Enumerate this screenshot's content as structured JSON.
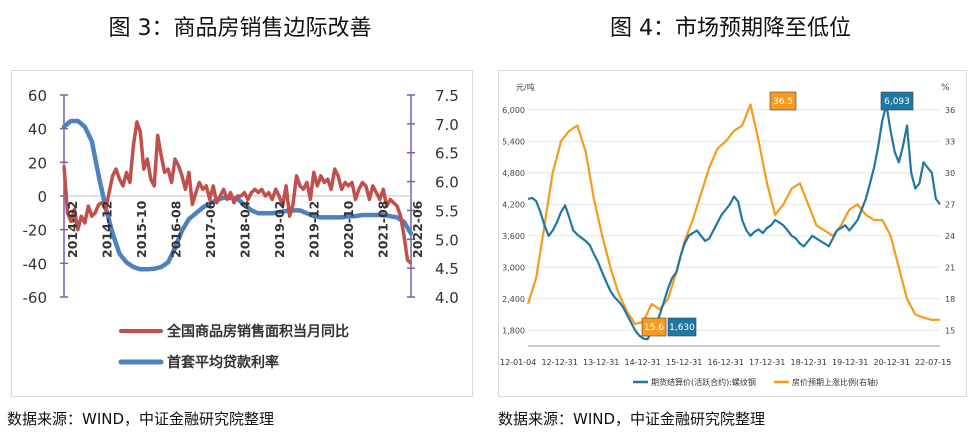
{
  "titles": {
    "left": "图 3：商品房销售边际改善",
    "right": "图 4：市场预期降至低位"
  },
  "sources": {
    "left": "数据来源：WIND，中证金融研究院整理",
    "right": "数据来源：WIND，中证金融研究院整理"
  },
  "colors": {
    "red": "#c0504d",
    "blue": "#4f81bd",
    "purple": "#7b5ea7",
    "teal": "#1f77a4",
    "orange": "#f59b1e"
  },
  "chart_data": [
    {
      "type": "line",
      "title": "图 3：商品房销售边际改善",
      "x_ticks": [
        "2014-02",
        "2014-12",
        "2015-10",
        "2016-08",
        "2017-06",
        "2018-04",
        "2019-02",
        "2019-12",
        "2020-10",
        "2021-08",
        "2022-06"
      ],
      "y_left": {
        "ticks": [
          "60",
          "40",
          "20",
          "0",
          "-20",
          "-40",
          "-60"
        ],
        "lim": [
          -60,
          60
        ]
      },
      "y_right": {
        "ticks": [
          "7.5",
          "7.0",
          "6.5",
          "6.0",
          "5.5",
          "5.0",
          "4.5",
          "4.0"
        ],
        "lim": [
          4.0,
          7.5
        ]
      },
      "legend": {
        "placement": "bottom"
      },
      "series": [
        {
          "name": "全国商品房销售面积当月同比",
          "axis": "left",
          "color": "#c0504d",
          "x": [
            0,
            1,
            2,
            3,
            4,
            5,
            6,
            7,
            8,
            9,
            10,
            11,
            12,
            13,
            14,
            15,
            16,
            17,
            18,
            19,
            20,
            21,
            22,
            23,
            24,
            25,
            26,
            27,
            28,
            29,
            30,
            31,
            32,
            33,
            34,
            35,
            36,
            37,
            38,
            39,
            40,
            41,
            42,
            43,
            44,
            45,
            46,
            47,
            48,
            49,
            50,
            51,
            52,
            53,
            54,
            55,
            56,
            57,
            58,
            59,
            60,
            61,
            62,
            63,
            64,
            65,
            66,
            67,
            68,
            69,
            70,
            71,
            72,
            73,
            74,
            75,
            76,
            77,
            78,
            79,
            80,
            81,
            82,
            83,
            84,
            85,
            86,
            87,
            88,
            89,
            90,
            91,
            92,
            93,
            94,
            95,
            96,
            97,
            98,
            99,
            100
          ],
          "values": [
            18,
            -10,
            -15,
            -8,
            -20,
            -12,
            -16,
            -6,
            -12,
            -10,
            -5,
            -4,
            -8,
            2,
            12,
            16,
            10,
            6,
            14,
            8,
            30,
            44,
            38,
            16,
            22,
            10,
            6,
            36,
            24,
            14,
            16,
            8,
            22,
            18,
            12,
            4,
            14,
            -5,
            2,
            8,
            4,
            6,
            -2,
            6,
            -4,
            0,
            4,
            -2,
            2,
            -4,
            0,
            0,
            2,
            -2,
            2,
            4,
            2,
            4,
            0,
            2,
            -2,
            4,
            0,
            -6,
            6,
            -12,
            -5,
            12,
            6,
            4,
            8,
            -2,
            14,
            6,
            12,
            8,
            10,
            4,
            16,
            12,
            4,
            8,
            6,
            8,
            -2,
            4,
            8,
            6,
            -2,
            6,
            2,
            -2,
            4,
            -6,
            -2,
            -4,
            -6,
            -12,
            -24,
            -38,
            -40
          ]
        },
        {
          "name": "首套平均贷款利率",
          "axis": "right",
          "color": "#4f81bd",
          "x": [
            0,
            2,
            4,
            6,
            8,
            10,
            12,
            14,
            16,
            18,
            20,
            22,
            24,
            26,
            28,
            30,
            32,
            34,
            36,
            38,
            40,
            42,
            44,
            46,
            48,
            50,
            52,
            54,
            56,
            58,
            60,
            62,
            64,
            66,
            68,
            70,
            72,
            74,
            76,
            78,
            80,
            82,
            84,
            86,
            88,
            90,
            92,
            94,
            96,
            98,
            100
          ],
          "values": [
            6.95,
            7.05,
            7.05,
            6.95,
            6.7,
            6.1,
            5.55,
            5.1,
            4.75,
            4.6,
            4.52,
            4.48,
            4.48,
            4.49,
            4.52,
            4.6,
            4.85,
            5.15,
            5.35,
            5.45,
            5.55,
            5.62,
            5.68,
            5.72,
            5.72,
            5.7,
            5.6,
            5.5,
            5.45,
            5.45,
            5.45,
            5.47,
            5.49,
            5.5,
            5.5,
            5.45,
            5.4,
            5.38,
            5.38,
            5.38,
            5.38,
            5.4,
            5.4,
            5.42,
            5.42,
            5.42,
            5.42,
            5.4,
            5.38,
            5.3,
            5.1
          ]
        }
      ]
    },
    {
      "type": "line",
      "title": "图 4：市场预期降至低位",
      "y_left": {
        "unit": "元/吨",
        "ticks": [
          "6,000",
          "5,400",
          "4,800",
          "4,200",
          "3,600",
          "3,000",
          "2,400",
          "1,800"
        ],
        "lim": [
          1500,
          6300
        ]
      },
      "y_right": {
        "unit": "%",
        "ticks": [
          "36",
          "33",
          "30",
          "27",
          "24",
          "21",
          "18",
          "15"
        ],
        "lim": [
          13.5,
          37.5
        ]
      },
      "x_ticks": [
        "12-01-04",
        "12-12-31",
        "13-12-31",
        "14-12-31",
        "15-12-31",
        "16-12-31",
        "17-12-31",
        "18-12-31",
        "19-12-31",
        "20-12-31",
        "22-07-15"
      ],
      "annotations": [
        "36.5",
        "6,093",
        "15.6",
        "1,630"
      ],
      "legend": {
        "placement": "bottom"
      },
      "series": [
        {
          "name": "期货结算价(活跃合约):螺纹钢",
          "axis": "left",
          "color": "#1f77a4",
          "x": [
            0,
            1,
            2,
            3,
            4,
            5,
            6,
            7,
            8,
            9,
            10,
            11,
            12,
            13,
            14,
            15,
            16,
            17,
            18,
            19,
            20,
            21,
            22,
            23,
            24,
            25,
            26,
            27,
            28,
            29,
            30,
            31,
            32,
            33,
            34,
            35,
            36,
            37,
            38,
            39,
            40,
            41,
            42,
            43,
            44,
            45,
            46,
            47,
            48,
            49,
            50,
            51,
            52,
            53,
            54,
            55,
            56,
            57,
            58,
            59,
            60,
            61,
            62,
            63,
            64,
            65,
            66,
            67,
            68,
            69,
            70,
            71,
            72,
            73,
            74,
            75,
            76,
            77,
            78,
            79,
            80,
            81,
            82,
            83,
            84,
            85,
            86,
            87,
            88,
            89,
            90,
            91,
            92,
            93,
            94,
            95,
            96,
            97,
            98,
            99,
            100
          ],
          "values": [
            4300,
            4320,
            4260,
            4050,
            3800,
            3600,
            3700,
            3850,
            4050,
            4180,
            3950,
            3700,
            3620,
            3560,
            3500,
            3420,
            3250,
            3100,
            2900,
            2720,
            2550,
            2430,
            2350,
            2250,
            2100,
            1950,
            1800,
            1700,
            1640,
            1630,
            1780,
            1900,
            2100,
            2350,
            2600,
            2800,
            2900,
            3200,
            3450,
            3600,
            3650,
            3700,
            3600,
            3500,
            3550,
            3700,
            3850,
            4000,
            4100,
            4200,
            4350,
            4250,
            3900,
            3700,
            3600,
            3680,
            3720,
            3650,
            3750,
            3800,
            3900,
            3850,
            3800,
            3700,
            3600,
            3550,
            3450,
            3400,
            3500,
            3600,
            3550,
            3500,
            3450,
            3400,
            3550,
            3700,
            3750,
            3800,
            3700,
            3800,
            3900,
            4100,
            4300,
            4600,
            4900,
            5300,
            5800,
            6093,
            5600,
            5200,
            5000,
            5300,
            5700,
            4800,
            4500,
            4600,
            5000,
            4900,
            4800,
            4300,
            4200
          ]
        },
        {
          "name": "房价预期上涨比例(右轴)",
          "axis": "right",
          "color": "#f59b1e",
          "x": [
            0,
            2,
            4,
            6,
            8,
            10,
            12,
            14,
            16,
            18,
            20,
            22,
            24,
            26,
            28,
            30,
            32,
            34,
            36,
            38,
            40,
            42,
            44,
            46,
            48,
            50,
            52,
            54,
            56,
            58,
            60,
            62,
            64,
            66,
            68,
            70,
            72,
            74,
            76,
            78,
            80,
            82,
            84,
            86,
            88,
            90,
            92,
            94,
            96,
            98,
            100
          ],
          "values": [
            17.5,
            20,
            25,
            30,
            33,
            34,
            34.5,
            32,
            27.5,
            24,
            21,
            18.5,
            16.8,
            15.6,
            15.8,
            17.5,
            17,
            18,
            20.5,
            23.5,
            25.5,
            28,
            30.5,
            32.3,
            33,
            34,
            34.5,
            36.5,
            33,
            29,
            26,
            27,
            28.5,
            29,
            27,
            25,
            24.5,
            24,
            25,
            26.5,
            27,
            26,
            25.5,
            25.5,
            24,
            21,
            18,
            16.5,
            16.2,
            16,
            16
          ]
        }
      ]
    }
  ]
}
